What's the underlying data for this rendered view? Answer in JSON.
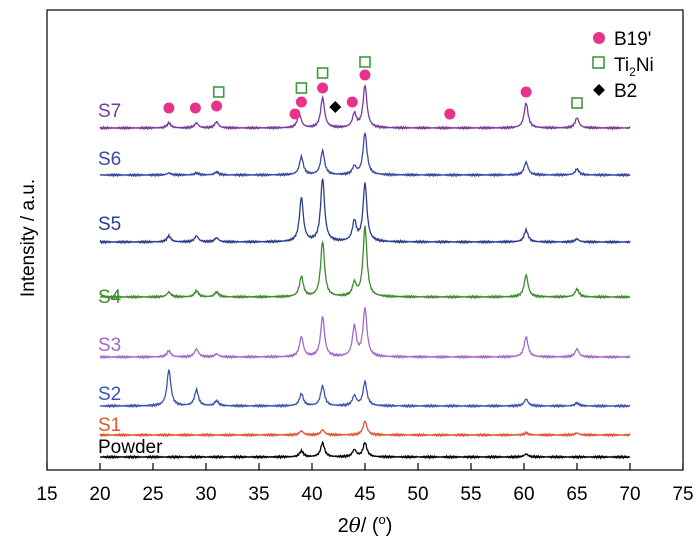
{
  "chart_data": {
    "type": "line",
    "xlabel_parts": [
      "2",
      "θ",
      "/ (",
      "o",
      ")"
    ],
    "ylabel": "Intensity / a.u.",
    "xlim": [
      15,
      75
    ],
    "xticks": [
      15,
      20,
      25,
      30,
      35,
      40,
      45,
      50,
      55,
      60,
      65,
      70,
      75
    ],
    "x_range": [
      20,
      70
    ],
    "yticks": false,
    "grid": false,
    "legend": {
      "placement": "top-right",
      "entries": [
        {
          "label": "B19'",
          "marker": "filled-circle",
          "color": "#e8338a"
        },
        {
          "label_parts": [
            "Ti",
            "2",
            "Ni"
          ],
          "marker": "open-square",
          "color": "#3e9a3e"
        },
        {
          "label": "B2",
          "marker": "filled-diamond",
          "color": "#000000"
        }
      ]
    },
    "series": [
      {
        "name": "Powder",
        "color": "#000000",
        "offset": 0,
        "peaks": [
          [
            39.0,
            6
          ],
          [
            41.0,
            14
          ],
          [
            44.0,
            7
          ],
          [
            45.0,
            14
          ],
          [
            60.2,
            3
          ]
        ]
      },
      {
        "name": "S1",
        "color": "#e2552f",
        "offset": 1,
        "peaks": [
          [
            39.0,
            4
          ],
          [
            41.0,
            5
          ],
          [
            45.0,
            14
          ],
          [
            60.2,
            2
          ],
          [
            65.0,
            2
          ]
        ]
      },
      {
        "name": "S2",
        "color": "#3b55b0",
        "offset": 2,
        "peaks": [
          [
            26.5,
            36
          ],
          [
            29.1,
            16
          ],
          [
            31.0,
            5
          ],
          [
            39.0,
            12
          ],
          [
            41.0,
            20
          ],
          [
            44.0,
            10
          ],
          [
            45.0,
            24
          ],
          [
            60.2,
            7
          ],
          [
            65.0,
            3
          ]
        ]
      },
      {
        "name": "S3",
        "color": "#a46ac7",
        "offset": 3,
        "peaks": [
          [
            26.5,
            6
          ],
          [
            29.1,
            8
          ],
          [
            31.0,
            3
          ],
          [
            39.0,
            20
          ],
          [
            41.0,
            40
          ],
          [
            44.0,
            30
          ],
          [
            45.0,
            48
          ],
          [
            60.2,
            20
          ],
          [
            65.0,
            8
          ]
        ]
      },
      {
        "name": "S4",
        "color": "#3e8a2e",
        "offset": 4,
        "peaks": [
          [
            26.5,
            5
          ],
          [
            29.1,
            6
          ],
          [
            31.0,
            5
          ],
          [
            39.0,
            20
          ],
          [
            41.0,
            55
          ],
          [
            44.0,
            13
          ],
          [
            45.0,
            70
          ],
          [
            60.2,
            22
          ],
          [
            65.0,
            8
          ]
        ]
      },
      {
        "name": "S5",
        "color": "#2c3e8a",
        "offset": 5,
        "peaks": [
          [
            26.5,
            6
          ],
          [
            29.1,
            6
          ],
          [
            31.0,
            4
          ],
          [
            39.0,
            44
          ],
          [
            41.0,
            63
          ],
          [
            44.0,
            20
          ],
          [
            45.0,
            58
          ],
          [
            60.2,
            12
          ],
          [
            65.0,
            3
          ]
        ]
      },
      {
        "name": "S6",
        "color": "#3a48a0",
        "offset": 6,
        "peaks": [
          [
            26.5,
            2
          ],
          [
            29.1,
            2
          ],
          [
            31.0,
            3
          ],
          [
            39.0,
            18
          ],
          [
            41.0,
            24
          ],
          [
            44.0,
            8
          ],
          [
            45.0,
            42
          ],
          [
            60.2,
            13
          ],
          [
            65.0,
            6
          ]
        ]
      },
      {
        "name": "S7",
        "color": "#7a3a9a",
        "offset": 7,
        "peaks": [
          [
            26.5,
            5
          ],
          [
            29.1,
            5
          ],
          [
            31.0,
            6
          ],
          [
            38.8,
            14
          ],
          [
            41.0,
            30
          ],
          [
            44.0,
            14
          ],
          [
            45.0,
            42
          ],
          [
            60.2,
            25
          ],
          [
            65.0,
            10
          ]
        ]
      }
    ],
    "markers": [
      {
        "type": "B19'",
        "x": 26.5
      },
      {
        "type": "B19'",
        "x": 29.0
      },
      {
        "type": "B19'",
        "x": 31.0
      },
      {
        "type": "B19'",
        "x": 38.4
      },
      {
        "type": "B19'",
        "x": 39.0
      },
      {
        "type": "B19'",
        "x": 41.0
      },
      {
        "type": "B19'",
        "x": 43.8
      },
      {
        "type": "B19'",
        "x": 45.0
      },
      {
        "type": "B19'",
        "x": 53.0
      },
      {
        "type": "B19'",
        "x": 60.2
      },
      {
        "type": "Ti2Ni",
        "x": 31.2
      },
      {
        "type": "Ti2Ni",
        "x": 39.0
      },
      {
        "type": "Ti2Ni",
        "x": 41.0
      },
      {
        "type": "Ti2Ni",
        "x": 45.0
      },
      {
        "type": "Ti2Ni",
        "x": 65.0
      },
      {
        "type": "B2",
        "x": 42.2
      }
    ]
  }
}
